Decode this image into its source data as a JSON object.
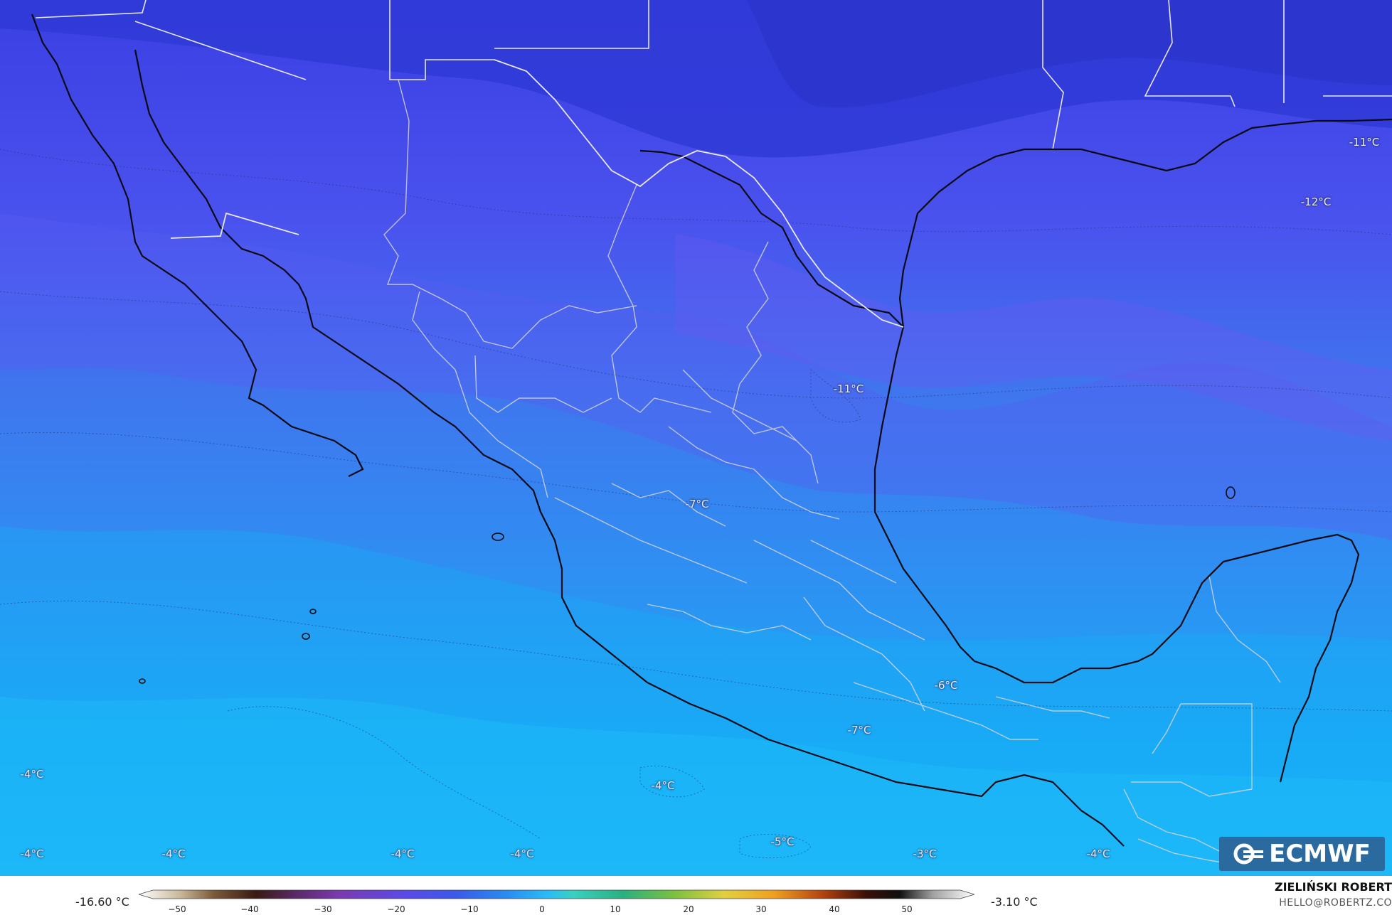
{
  "map": {
    "labels": [
      {
        "text": "-11°C",
        "id": "label-11-east"
      },
      {
        "text": "-12°C",
        "id": "label-12-east"
      },
      {
        "text": "-11°C",
        "id": "label-11-coahuila"
      },
      {
        "text": "-7°C",
        "id": "label-7-central"
      },
      {
        "text": "-6°C",
        "id": "label-6-veracruz"
      },
      {
        "text": "-7°C",
        "id": "label-7-south"
      },
      {
        "text": "-4°C",
        "id": "label-4-west"
      },
      {
        "text": "-4°C",
        "id": "label-4-pacific"
      },
      {
        "text": "-4°C",
        "id": "label-4-bottom-1"
      },
      {
        "text": "-4°C",
        "id": "label-4-bottom-2"
      },
      {
        "text": "-4°C",
        "id": "label-4-bottom-3"
      },
      {
        "text": "-4°C",
        "id": "label-4-bottom-4"
      },
      {
        "text": "-5°C",
        "id": "label-5-bottom"
      },
      {
        "text": "-3°C",
        "id": "label-3-bottom"
      },
      {
        "text": "-4°C",
        "id": "label-4-bottom-5"
      }
    ]
  },
  "logo": {
    "text": "ECMWF"
  },
  "legend": {
    "min_value": "-16.60 °C",
    "max_value": "-3.10 °C",
    "ticks": [
      "−50",
      "−40",
      "−30",
      "−20",
      "−10",
      "0",
      "10",
      "20",
      "30",
      "40",
      "50"
    ]
  },
  "credit": {
    "name": "ZIELIŃSKI ROBERT",
    "email": "HELLO@ROBERTZ.CO"
  },
  "colors": {
    "cold_dark": "#3a3fe0",
    "mid": "#4a6cf0",
    "warm": "#1fb5f5",
    "border_country": "#000000",
    "border_state": "#d8d8d8"
  }
}
